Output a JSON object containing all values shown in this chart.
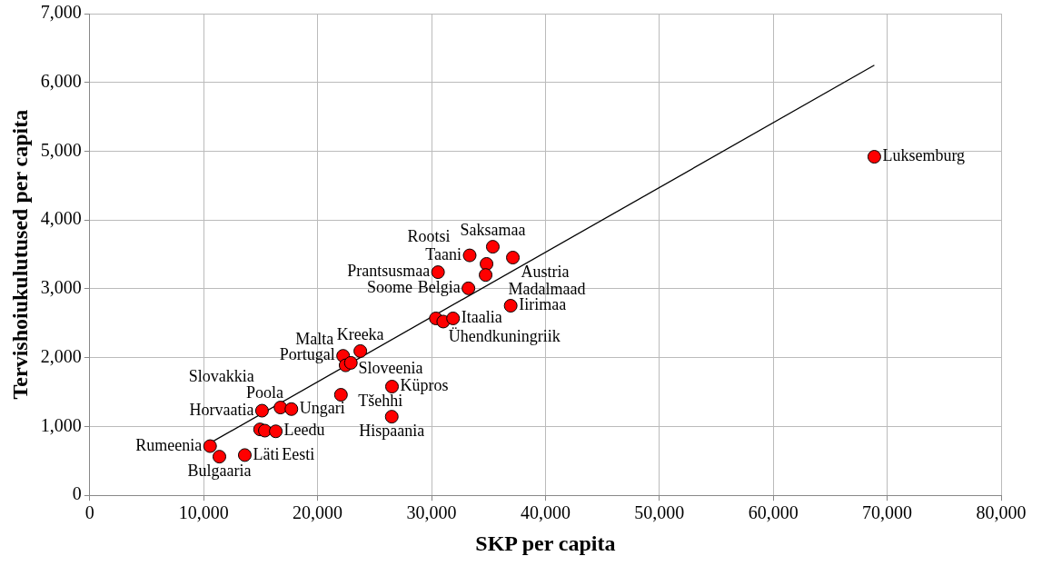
{
  "chart_data": {
    "type": "scatter",
    "xlabel": "SKP per capita",
    "ylabel": "Tervishoiukulutused per capita",
    "xlim": [
      0,
      80000
    ],
    "xticks": [
      {
        "value": 0,
        "label": "0"
      },
      {
        "value": 10000,
        "label": "10,000"
      },
      {
        "value": 20000,
        "label": "20,000"
      },
      {
        "value": 30000,
        "label": "30,000"
      },
      {
        "value": 40000,
        "label": "40,000"
      },
      {
        "value": 50000,
        "label": "50,000"
      },
      {
        "value": 60000,
        "label": "60,000"
      },
      {
        "value": 70000,
        "label": "70,000"
      },
      {
        "value": 80000,
        "label": "80,000"
      }
    ],
    "ylim": [
      0,
      7000
    ],
    "yticks": [
      {
        "value": 0,
        "label": "0"
      },
      {
        "value": 1000,
        "label": "1,000"
      },
      {
        "value": 2000,
        "label": "2,000"
      },
      {
        "value": 3000,
        "label": "3,000"
      },
      {
        "value": 4000,
        "label": "4,000"
      },
      {
        "value": 5000,
        "label": "5,000"
      },
      {
        "value": 6000,
        "label": "6,000"
      },
      {
        "value": 7000,
        "label": "7,000"
      }
    ],
    "grid": true,
    "marker": "circle",
    "series": [
      {
        "color": "#ff0000",
        "x": [
          10560,
          11380,
          13610,
          15120,
          14950,
          15370,
          16330,
          16740,
          17700,
          22050,
          22240,
          22460,
          22920,
          23750,
          26530,
          26510,
          30570,
          33350,
          35380,
          37140,
          34830,
          33240,
          34750,
          36950,
          30380,
          31030,
          31890,
          68870
        ],
        "values": [
          715,
          562,
          585,
          1230,
          958,
          940,
          930,
          1276,
          1253,
          1461,
          2027,
          1889,
          1925,
          2096,
          1580,
          1143,
          3243,
          3487,
          3612,
          3455,
          3363,
          3008,
          3202,
          2755,
          2571,
          2525,
          2571,
          4920
        ]
      },
      {
        "type": "line",
        "color": "#000000",
        "marker": "none",
        "x": [
          10560,
          68870
        ],
        "values": [
          760,
          6250
        ]
      }
    ],
    "annotations": [
      {
        "text": "Rumeenia",
        "x": 10560,
        "y": 715
      },
      {
        "text": "Bulgaaria",
        "x": 11380,
        "y": 562
      },
      {
        "text": "Läti",
        "x": 13610,
        "y": 585
      },
      {
        "text": "Horvaatia",
        "x": 15120,
        "y": 1230
      },
      {
        "text": "Eesti",
        "x": 14950,
        "y": 958
      },
      {
        "text": "Poola",
        "x": 15370,
        "y": 940
      },
      {
        "text": "Leedu",
        "x": 16330,
        "y": 930
      },
      {
        "text": "Slovakkia",
        "x": 16740,
        "y": 1276
      },
      {
        "text": "Ungari",
        "x": 17700,
        "y": 1253
      },
      {
        "text": "Tšehhi",
        "x": 22050,
        "y": 1461
      },
      {
        "text": "Portugal",
        "x": 22240,
        "y": 2027
      },
      {
        "text": "Sloveenia",
        "x": 22460,
        "y": 1889
      },
      {
        "text": "Malta",
        "x": 22920,
        "y": 1925
      },
      {
        "text": "Kreeka",
        "x": 23750,
        "y": 2096
      },
      {
        "text": "Küpros",
        "x": 26530,
        "y": 1580
      },
      {
        "text": "Hispaania",
        "x": 26510,
        "y": 1143
      },
      {
        "text": "Prantsusmaa",
        "x": 30570,
        "y": 3243
      },
      {
        "text": "Taani",
        "x": 33350,
        "y": 3487
      },
      {
        "text": "Saksamaa",
        "x": 35380,
        "y": 3612
      },
      {
        "text": "Austria",
        "x": 37140,
        "y": 3455
      },
      {
        "text": "Madalmaad",
        "x": 34830,
        "y": 3363
      },
      {
        "text": "Belgia",
        "x": 33240,
        "y": 3008
      },
      {
        "text": "Rootsi",
        "x": 34750,
        "y": 3202
      },
      {
        "text": "Iirimaa",
        "x": 36950,
        "y": 2755
      },
      {
        "text": "Ühendkuningriik",
        "x": 30380,
        "y": 2571
      },
      {
        "text": "Soome",
        "x": 31030,
        "y": 2525
      },
      {
        "text": "Itaalia",
        "x": 31890,
        "y": 2571
      },
      {
        "text": "Luksemburg",
        "x": 68870,
        "y": 4920
      }
    ]
  }
}
